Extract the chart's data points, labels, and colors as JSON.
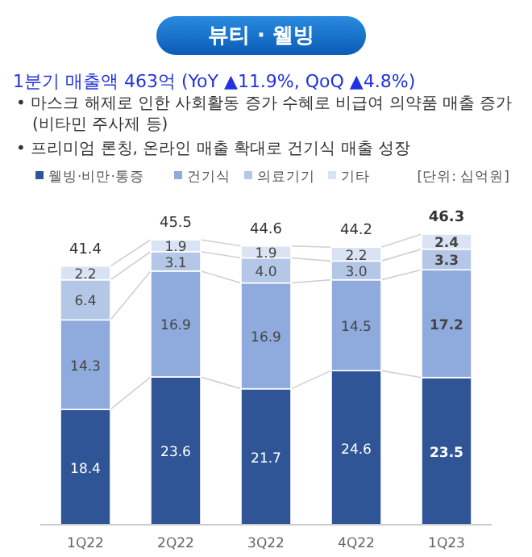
{
  "chart_data": {
    "type": "bar",
    "stacked": true,
    "title": "뷰티 · 웰빙",
    "subtitle": "1분기 매출액 463억 (YoY ▲11.9%, QoQ ▲4.8%)",
    "annotations": [
      "• 마스크 해제로 인한 사회활동 증가 수혜로 비급여 의약품 매출 증가 (비타민 주사제 등)",
      "• 프리미엄 론칭, 온라인 매출 확대로 건기식 매출 성장",
      "[단위: 십억원]"
    ],
    "categories": [
      "1Q22",
      "2Q22",
      "3Q22",
      "4Q22",
      "1Q23"
    ],
    "series": [
      {
        "name": "웰빙·비만·통증",
        "color": "#2f5597",
        "values": [
          18.4,
          23.6,
          21.7,
          24.6,
          23.5
        ]
      },
      {
        "name": "건기식",
        "color": "#8faadc",
        "values": [
          14.3,
          16.9,
          16.9,
          14.5,
          17.2
        ]
      },
      {
        "name": "의료기기",
        "color": "#b4c7e7",
        "values": [
          6.4,
          3.1,
          4.0,
          3.0,
          3.3
        ],
        "value_labels": [
          "6.4",
          "3.1",
          "4.0",
          "3.0",
          "3.3"
        ]
      },
      {
        "name": "기타",
        "color": "#dae3f3",
        "values": [
          2.2,
          1.9,
          1.9,
          2.2,
          2.4
        ]
      }
    ],
    "totals": [
      "41.4",
      "45.5",
      "44.6",
      "44.2",
      "46.3"
    ],
    "data_labels": true,
    "legend": "top"
  }
}
